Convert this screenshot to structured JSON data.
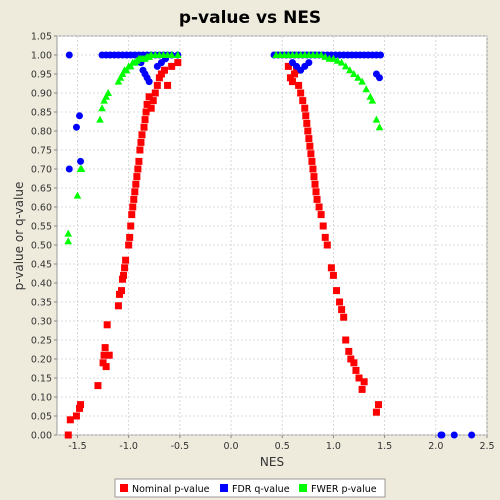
{
  "chart_data": {
    "type": "scatter",
    "title": "p-value vs NES",
    "xlabel": "NES",
    "ylabel": "p-value or q-value",
    "xlim": [
      -1.7,
      2.5
    ],
    "ylim": [
      0.0,
      1.05
    ],
    "x_ticks": [
      "-1.5",
      "-1.0",
      "-0.5",
      "0.0",
      "0.5",
      "1.0",
      "1.5",
      "2.0",
      "2.5"
    ],
    "x_tick_values": [
      -1.5,
      -1.0,
      -0.5,
      0.0,
      0.5,
      1.0,
      1.5,
      2.0,
      2.5
    ],
    "y_ticks": [
      "0.00",
      "0.05",
      "0.10",
      "0.15",
      "0.20",
      "0.25",
      "0.30",
      "0.35",
      "0.40",
      "0.45",
      "0.50",
      "0.55",
      "0.60",
      "0.65",
      "0.70",
      "0.75",
      "0.80",
      "0.85",
      "0.90",
      "0.95",
      "1.00",
      "1.05"
    ],
    "y_tick_values": [
      0.0,
      0.05,
      0.1,
      0.15,
      0.2,
      0.25,
      0.3,
      0.35,
      0.4,
      0.45,
      0.5,
      0.55,
      0.6,
      0.65,
      0.7,
      0.75,
      0.8,
      0.85,
      0.9,
      0.95,
      1.0,
      1.05
    ],
    "grid": true,
    "legend_position": "bottom",
    "series": [
      {
        "name": "Nominal p-value",
        "marker": "square",
        "color": "#ff0000",
        "points": [
          [
            -1.59,
            0.0
          ],
          [
            -1.57,
            0.04
          ],
          [
            -1.51,
            0.05
          ],
          [
            -1.48,
            0.07
          ],
          [
            -1.47,
            0.08
          ],
          [
            -1.3,
            0.13
          ],
          [
            -1.25,
            0.19
          ],
          [
            -1.24,
            0.21
          ],
          [
            -1.23,
            0.23
          ],
          [
            -1.22,
            0.18
          ],
          [
            -1.21,
            0.29
          ],
          [
            -1.19,
            0.21
          ],
          [
            -1.1,
            0.34
          ],
          [
            -1.09,
            0.37
          ],
          [
            -1.07,
            0.38
          ],
          [
            -1.06,
            0.41
          ],
          [
            -1.05,
            0.42
          ],
          [
            -1.04,
            0.44
          ],
          [
            -1.03,
            0.46
          ],
          [
            -1.0,
            0.5
          ],
          [
            -0.99,
            0.52
          ],
          [
            -0.98,
            0.55
          ],
          [
            -0.97,
            0.58
          ],
          [
            -0.96,
            0.6
          ],
          [
            -0.95,
            0.62
          ],
          [
            -0.94,
            0.64
          ],
          [
            -0.93,
            0.66
          ],
          [
            -0.92,
            0.68
          ],
          [
            -0.91,
            0.7
          ],
          [
            -0.9,
            0.72
          ],
          [
            -0.89,
            0.75
          ],
          [
            -0.88,
            0.77
          ],
          [
            -0.87,
            0.79
          ],
          [
            -0.85,
            0.81
          ],
          [
            -0.84,
            0.83
          ],
          [
            -0.83,
            0.85
          ],
          [
            -0.82,
            0.87
          ],
          [
            -0.8,
            0.89
          ],
          [
            -0.78,
            0.86
          ],
          [
            -0.76,
            0.88
          ],
          [
            -0.74,
            0.9
          ],
          [
            -0.72,
            0.92
          ],
          [
            -0.7,
            0.94
          ],
          [
            -0.68,
            0.95
          ],
          [
            -0.65,
            0.96
          ],
          [
            -0.62,
            0.92
          ],
          [
            -0.58,
            0.97
          ],
          [
            -0.52,
            0.98
          ],
          [
            0.56,
            0.97
          ],
          [
            0.58,
            0.94
          ],
          [
            0.6,
            0.93
          ],
          [
            0.62,
            0.95
          ],
          [
            0.64,
            0.96
          ],
          [
            0.66,
            0.92
          ],
          [
            0.68,
            0.9
          ],
          [
            0.7,
            0.88
          ],
          [
            0.72,
            0.86
          ],
          [
            0.73,
            0.84
          ],
          [
            0.74,
            0.82
          ],
          [
            0.75,
            0.8
          ],
          [
            0.76,
            0.78
          ],
          [
            0.77,
            0.76
          ],
          [
            0.78,
            0.74
          ],
          [
            0.79,
            0.72
          ],
          [
            0.8,
            0.7
          ],
          [
            0.81,
            0.68
          ],
          [
            0.82,
            0.66
          ],
          [
            0.83,
            0.64
          ],
          [
            0.84,
            0.62
          ],
          [
            0.86,
            0.6
          ],
          [
            0.88,
            0.58
          ],
          [
            0.9,
            0.55
          ],
          [
            0.92,
            0.52
          ],
          [
            0.94,
            0.5
          ],
          [
            0.98,
            0.44
          ],
          [
            1.0,
            0.42
          ],
          [
            1.03,
            0.38
          ],
          [
            1.06,
            0.35
          ],
          [
            1.08,
            0.33
          ],
          [
            1.1,
            0.31
          ],
          [
            1.12,
            0.25
          ],
          [
            1.15,
            0.22
          ],
          [
            1.17,
            0.2
          ],
          [
            1.2,
            0.19
          ],
          [
            1.22,
            0.17
          ],
          [
            1.25,
            0.15
          ],
          [
            1.28,
            0.12
          ],
          [
            1.3,
            0.14
          ],
          [
            1.42,
            0.06
          ],
          [
            1.44,
            0.08
          ]
        ]
      },
      {
        "name": "FDR q-value",
        "marker": "circle",
        "color": "#0000ff",
        "points": [
          [
            -1.58,
            1.0
          ],
          [
            -1.58,
            0.7
          ],
          [
            -1.51,
            0.81
          ],
          [
            -1.48,
            0.84
          ],
          [
            -1.47,
            0.72
          ],
          [
            -1.26,
            1.0
          ],
          [
            -1.22,
            1.0
          ],
          [
            -1.18,
            1.0
          ],
          [
            -1.14,
            1.0
          ],
          [
            -1.1,
            1.0
          ],
          [
            -1.06,
            1.0
          ],
          [
            -1.02,
            1.0
          ],
          [
            -0.98,
            1.0
          ],
          [
            -0.94,
            1.0
          ],
          [
            -0.9,
            1.0
          ],
          [
            -0.86,
            1.0
          ],
          [
            -0.82,
            1.0
          ],
          [
            -0.78,
            1.0
          ],
          [
            -0.74,
            1.0
          ],
          [
            -0.7,
            1.0
          ],
          [
            -0.66,
            1.0
          ],
          [
            -0.62,
            1.0
          ],
          [
            -0.58,
            1.0
          ],
          [
            -0.52,
            1.0
          ],
          [
            -0.88,
            0.98
          ],
          [
            -0.86,
            0.96
          ],
          [
            -0.84,
            0.95
          ],
          [
            -0.82,
            0.94
          ],
          [
            -0.8,
            0.93
          ],
          [
            -0.72,
            0.97
          ],
          [
            -0.68,
            0.98
          ],
          [
            -0.64,
            0.99
          ],
          [
            0.42,
            1.0
          ],
          [
            0.46,
            1.0
          ],
          [
            0.5,
            1.0
          ],
          [
            0.54,
            1.0
          ],
          [
            0.58,
            1.0
          ],
          [
            0.62,
            1.0
          ],
          [
            0.66,
            1.0
          ],
          [
            0.7,
            1.0
          ],
          [
            0.74,
            1.0
          ],
          [
            0.78,
            1.0
          ],
          [
            0.82,
            1.0
          ],
          [
            0.86,
            1.0
          ],
          [
            0.9,
            1.0
          ],
          [
            0.94,
            1.0
          ],
          [
            0.98,
            1.0
          ],
          [
            1.02,
            1.0
          ],
          [
            1.06,
            1.0
          ],
          [
            1.1,
            1.0
          ],
          [
            1.14,
            1.0
          ],
          [
            1.18,
            1.0
          ],
          [
            1.22,
            1.0
          ],
          [
            1.26,
            1.0
          ],
          [
            1.3,
            1.0
          ],
          [
            1.34,
            1.0
          ],
          [
            1.38,
            1.0
          ],
          [
            1.42,
            1.0
          ],
          [
            1.46,
            1.0
          ],
          [
            0.6,
            0.98
          ],
          [
            0.64,
            0.97
          ],
          [
            0.68,
            0.96
          ],
          [
            0.72,
            0.97
          ],
          [
            0.76,
            0.98
          ],
          [
            1.42,
            0.95
          ],
          [
            1.45,
            0.94
          ],
          [
            2.05,
            0.0
          ],
          [
            2.06,
            0.0
          ],
          [
            2.18,
            0.0
          ],
          [
            2.35,
            0.0
          ]
        ]
      },
      {
        "name": "FWER p-value",
        "marker": "triangle",
        "color": "#00ff00",
        "points": [
          [
            -1.59,
            0.53
          ],
          [
            -1.59,
            0.51
          ],
          [
            -1.5,
            0.63
          ],
          [
            -1.47,
            0.7
          ],
          [
            -1.46,
            0.7
          ],
          [
            -1.28,
            0.83
          ],
          [
            -1.26,
            0.86
          ],
          [
            -1.24,
            0.88
          ],
          [
            -1.22,
            0.89
          ],
          [
            -1.2,
            0.9
          ],
          [
            -1.1,
            0.93
          ],
          [
            -1.08,
            0.94
          ],
          [
            -1.06,
            0.95
          ],
          [
            -1.04,
            0.96
          ],
          [
            -1.02,
            0.96
          ],
          [
            -1.0,
            0.97
          ],
          [
            -0.98,
            0.97
          ],
          [
            -0.96,
            0.98
          ],
          [
            -0.94,
            0.98
          ],
          [
            -0.92,
            0.985
          ],
          [
            -0.9,
            0.99
          ],
          [
            -0.88,
            0.99
          ],
          [
            -0.86,
            0.99
          ],
          [
            -0.84,
            0.99
          ],
          [
            -0.82,
            0.995
          ],
          [
            -0.8,
            0.995
          ],
          [
            -0.78,
            1.0
          ],
          [
            -0.74,
            1.0
          ],
          [
            -0.7,
            1.0
          ],
          [
            -0.66,
            1.0
          ],
          [
            -0.62,
            1.0
          ],
          [
            -0.58,
            1.0
          ],
          [
            -0.52,
            1.0
          ],
          [
            0.44,
            1.0
          ],
          [
            0.48,
            1.0
          ],
          [
            0.52,
            1.0
          ],
          [
            0.56,
            1.0
          ],
          [
            0.6,
            1.0
          ],
          [
            0.64,
            1.0
          ],
          [
            0.68,
            1.0
          ],
          [
            0.72,
            1.0
          ],
          [
            0.76,
            1.0
          ],
          [
            0.8,
            1.0
          ],
          [
            0.84,
            1.0
          ],
          [
            0.88,
            1.0
          ],
          [
            0.92,
            0.995
          ],
          [
            0.96,
            0.99
          ],
          [
            1.0,
            0.99
          ],
          [
            1.04,
            0.985
          ],
          [
            1.08,
            0.98
          ],
          [
            1.12,
            0.97
          ],
          [
            1.16,
            0.96
          ],
          [
            1.2,
            0.95
          ],
          [
            1.24,
            0.94
          ],
          [
            1.28,
            0.93
          ],
          [
            1.32,
            0.91
          ],
          [
            1.36,
            0.89
          ],
          [
            1.38,
            0.88
          ],
          [
            1.42,
            0.83
          ],
          [
            1.45,
            0.81
          ]
        ]
      }
    ]
  }
}
